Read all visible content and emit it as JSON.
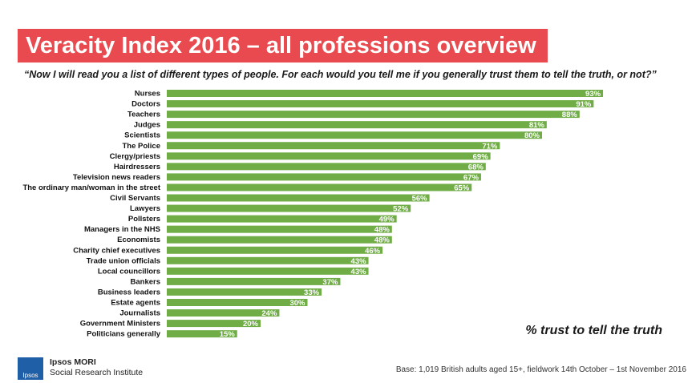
{
  "title": "Veracity Index 2016 – all professions overview",
  "subtitle": "“Now I will read you a list of different types of people. For each would you tell me if you generally trust them to tell the truth, or not?”",
  "note": "% trust to tell the truth",
  "base": "Base: 1,019 British adults aged 15+, fieldwork 14th October – 1st November 2016",
  "logo": {
    "mark": "Ipsos",
    "name": "Ipsos MORI",
    "tagline": "Social Research Institute"
  },
  "colors": {
    "bar": "#70ad47",
    "title_bg": "#e84a4f",
    "logo_bg": "#1f5fa8"
  },
  "chart_data": {
    "type": "bar",
    "orientation": "horizontal",
    "title": "Veracity Index 2016 – all professions overview",
    "xlim": [
      0,
      100
    ],
    "grid": false,
    "categories": [
      "Nurses",
      "Doctors",
      "Teachers",
      "Judges",
      "Scientists",
      "The Police",
      "Clergy/priests",
      "Hairdressers",
      "Television news readers",
      "The ordinary man/woman in the street",
      "Civil Servants",
      "Lawyers",
      "Pollsters",
      "Managers in the NHS",
      "Economists",
      "Charity chief executives",
      "Trade union officials",
      "Local councillors",
      "Bankers",
      "Business leaders",
      "Estate agents",
      "Journalists",
      "Government Ministers",
      "Politicians generally"
    ],
    "values": [
      93,
      91,
      88,
      81,
      80,
      71,
      69,
      68,
      67,
      65,
      56,
      52,
      49,
      48,
      48,
      46,
      43,
      43,
      37,
      33,
      30,
      24,
      20,
      15
    ],
    "value_labels": [
      "93%",
      "91%",
      "88%",
      "81%",
      "80%",
      "71%",
      "69%",
      "68%",
      "67%",
      "65%",
      "56%",
      "52%",
      "49%",
      "48%",
      "48%",
      "46%",
      "43%",
      "43%",
      "37%",
      "33%",
      "30%",
      "24%",
      "20%",
      "15%"
    ]
  }
}
